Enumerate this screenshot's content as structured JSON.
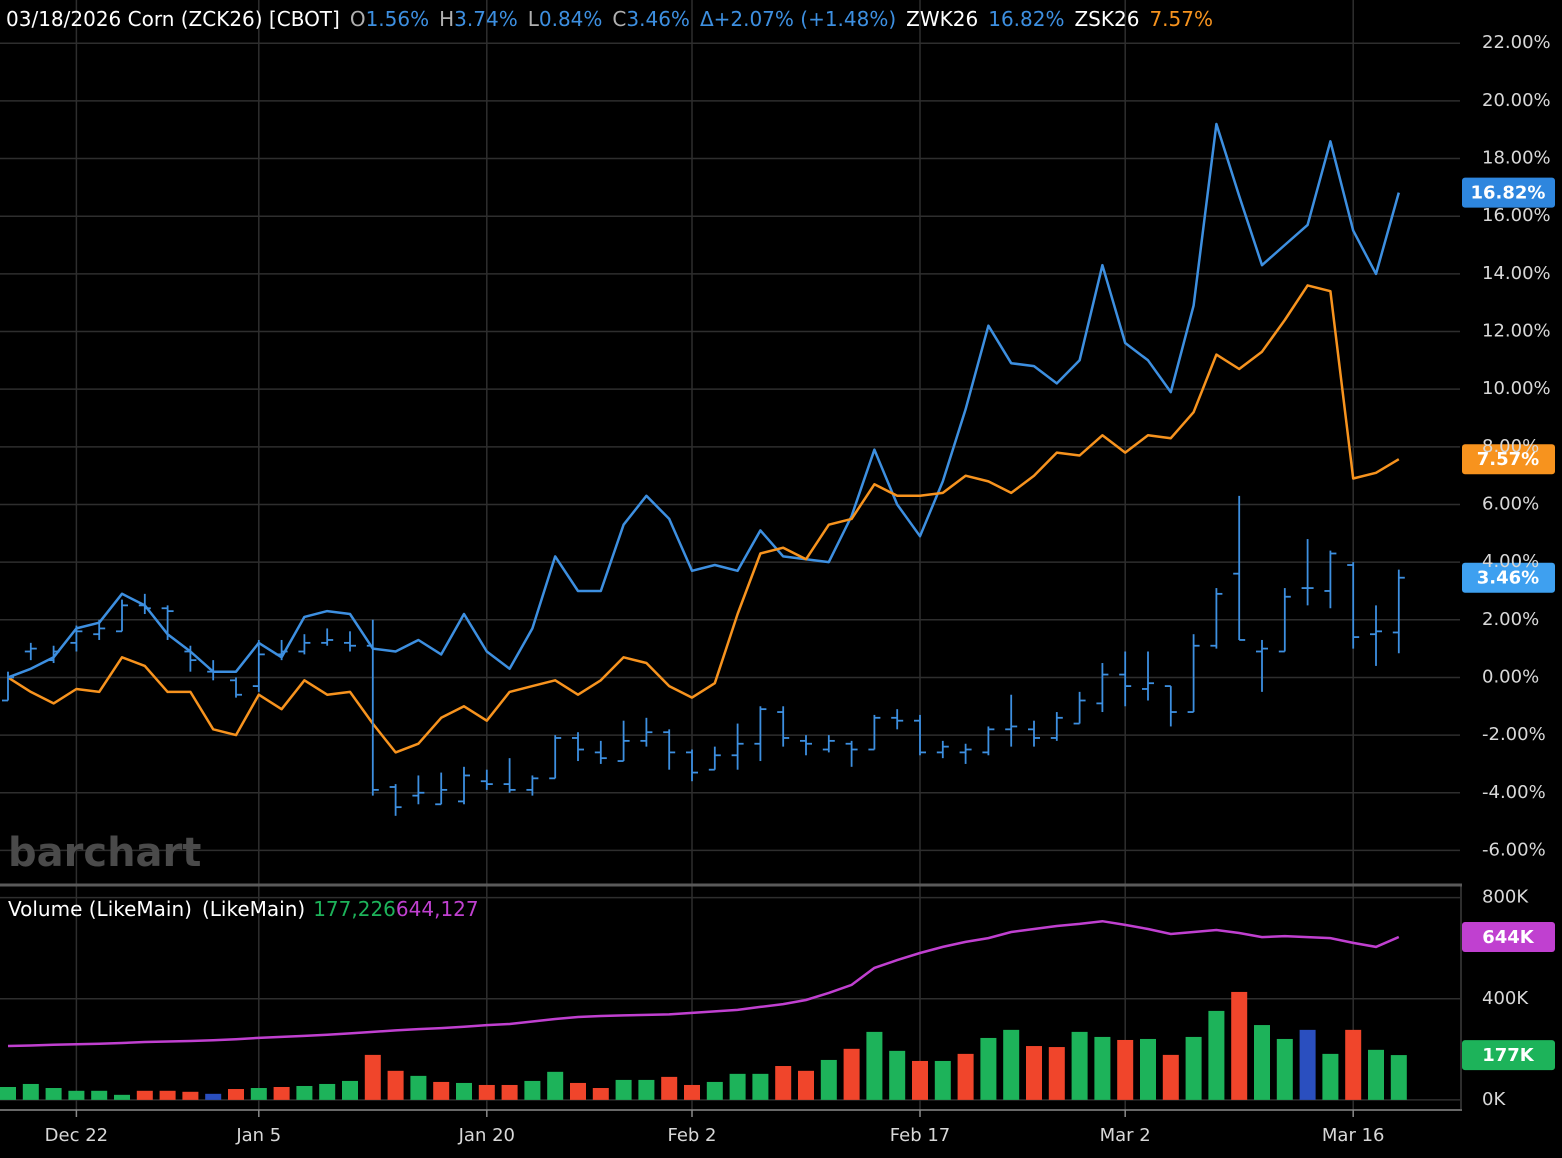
{
  "chart_data": [
    {
      "type": "ohlc",
      "title": "03/18/2026 Corn (ZCK26) [CBOT]",
      "readout": [
        {
          "key": "O",
          "label": "1.56%"
        },
        {
          "key": "H",
          "label": "3.74%"
        },
        {
          "key": "L",
          "label": "0.84%"
        },
        {
          "key": "C",
          "label": "3.46%"
        }
      ],
      "change_label": "Δ+2.07% (+1.48%)",
      "watermark": "barchart",
      "color": "#3d8fe0",
      "categories": [
        null,
        null,
        null,
        "Dec 22",
        null,
        null,
        null,
        null,
        null,
        null,
        null,
        "Jan 5",
        null,
        null,
        null,
        null,
        null,
        null,
        null,
        null,
        null,
        "Jan 20",
        null,
        null,
        null,
        null,
        null,
        null,
        null,
        null,
        "Feb 2",
        null,
        null,
        null,
        null,
        null,
        null,
        null,
        null,
        null,
        "Feb 17",
        null,
        null,
        null,
        null,
        null,
        null,
        null,
        null,
        "Mar 2",
        null,
        null,
        null,
        null,
        null,
        null,
        null,
        null,
        null,
        "Mar 16",
        null,
        null
      ],
      "open": [
        -0.8,
        0.9,
        0.6,
        1.2,
        1.5,
        1.6,
        2.5,
        2.4,
        0.9,
        0.2,
        -0.1,
        -0.3,
        0.8,
        0.9,
        1.2,
        1.2,
        1.1,
        -3.8,
        -4.1,
        -4.4,
        -4.3,
        -3.6,
        -3.7,
        -3.9,
        -3.5,
        -2.1,
        -2.6,
        -2.9,
        -2.2,
        -1.9,
        -2.6,
        -3.2,
        -2.7,
        -2.3,
        -1.2,
        -2.2,
        -2.5,
        -2.3,
        -2.5,
        -1.4,
        -1.5,
        -2.6,
        -2.6,
        -2.6,
        -1.8,
        -1.8,
        -2.1,
        -1.6,
        -0.9,
        0.1,
        -0.4,
        -0.3,
        -1.2,
        1.1,
        3.6,
        0.9,
        0.9,
        3.1,
        3.0,
        3.9,
        1.5,
        1.56
      ],
      "high": [
        0.2,
        1.2,
        1.1,
        1.8,
        2.0,
        2.7,
        2.9,
        2.5,
        1.1,
        0.6,
        0,
        1.3,
        1.3,
        1.5,
        1.7,
        1.6,
        2.0,
        -3.7,
        -3.4,
        -3.3,
        -3.1,
        -3.2,
        -2.8,
        -3.4,
        -2.0,
        -1.9,
        -2.2,
        -1.5,
        -1.4,
        -1.8,
        -2.5,
        -2.4,
        -1.6,
        -1.0,
        -1.0,
        -2.0,
        -2.0,
        -2.2,
        -1.3,
        -1.1,
        -1.3,
        -2.2,
        -2.3,
        -1.7,
        -0.6,
        -1.5,
        -1.2,
        -0.5,
        0.5,
        0.9,
        0.9,
        -0.3,
        1.5,
        3.1,
        6.3,
        1.3,
        3.1,
        4.8,
        4.4,
        4.0,
        2.5,
        3.74
      ],
      "low": [
        -0.8,
        0.6,
        0.5,
        0.9,
        1.3,
        1.6,
        2.2,
        1.3,
        0.2,
        -0.1,
        -0.7,
        -0.5,
        0.6,
        0.8,
        1.1,
        0.9,
        -4.1,
        -4.8,
        -4.4,
        -4.4,
        -4.4,
        -3.9,
        -4.0,
        -4.1,
        -3.5,
        -2.9,
        -3.0,
        -2.9,
        -2.4,
        -3.2,
        -3.6,
        -3.2,
        -3.2,
        -2.9,
        -2.4,
        -2.7,
        -2.6,
        -3.1,
        -2.5,
        -1.8,
        -2.7,
        -2.8,
        -3.0,
        -2.7,
        -2.4,
        -2.4,
        -2.2,
        -1.6,
        -1.2,
        -1.0,
        -0.8,
        -1.7,
        -1.2,
        1.0,
        1.3,
        -0.5,
        0.9,
        2.5,
        2.4,
        1.0,
        0.4,
        0.84
      ],
      "close": [
        0,
        1.0,
        0.9,
        1.6,
        1.7,
        2.5,
        2.4,
        2.3,
        0.6,
        0.2,
        -0.6,
        0.8,
        0.9,
        1.2,
        1.3,
        1.1,
        -3.9,
        -4.5,
        -4.0,
        -3.9,
        -3.4,
        -3.7,
        -3.9,
        -3.5,
        -2.1,
        -2.5,
        -2.8,
        -2.2,
        -1.9,
        -2.6,
        -3.3,
        -2.7,
        -2.3,
        -1.1,
        -2.1,
        -2.3,
        -2.2,
        -2.5,
        -1.4,
        -1.5,
        -2.6,
        -2.4,
        -2.5,
        -1.8,
        -1.7,
        -2.1,
        -1.4,
        -0.8,
        0.1,
        -0.3,
        -0.2,
        -1.2,
        1.1,
        2.9,
        1.3,
        1.0,
        2.8,
        3.1,
        4.3,
        1.4,
        1.6,
        3.46
      ],
      "series": [
        {
          "name": "ZWK26",
          "color": "#3d8fe0",
          "badge_color": "#2e86de",
          "value_label": "16.82%",
          "values": [
            0,
            0.3,
            0.7,
            1.7,
            1.9,
            2.9,
            2.5,
            1.5,
            0.9,
            0.2,
            0.2,
            1.2,
            0.7,
            2.1,
            2.3,
            2.2,
            1.0,
            0.9,
            1.3,
            0.8,
            2.2,
            0.9,
            0.3,
            1.7,
            4.2,
            3.0,
            3.0,
            5.3,
            6.3,
            5.5,
            3.7,
            3.9,
            3.7,
            5.1,
            4.2,
            4.1,
            4.0,
            5.6,
            7.9,
            6.0,
            4.9,
            6.8,
            9.3,
            12.2,
            10.9,
            10.8,
            10.2,
            11.0,
            14.3,
            11.6,
            11.0,
            9.9,
            12.9,
            19.2,
            16.7,
            14.3,
            15.0,
            15.7,
            18.6,
            15.5,
            14.0,
            16.82
          ]
        },
        {
          "name": "ZSK26",
          "color": "#f7931e",
          "badge_color": "#f7931e",
          "value_label": "7.57%",
          "values": [
            0,
            -0.5,
            -0.9,
            -0.4,
            -0.5,
            0.7,
            0.4,
            -0.5,
            -0.5,
            -1.8,
            -2.0,
            -0.6,
            -1.1,
            -0.1,
            -0.6,
            -0.5,
            -1.6,
            -2.6,
            -2.3,
            -1.4,
            -1.0,
            -1.5,
            -0.5,
            -0.3,
            -0.1,
            -0.6,
            -0.1,
            0.7,
            0.5,
            -0.3,
            -0.7,
            -0.2,
            2.2,
            4.3,
            4.5,
            4.1,
            5.3,
            5.5,
            6.7,
            6.3,
            6.3,
            6.4,
            7.0,
            6.8,
            6.4,
            7.0,
            7.8,
            7.7,
            8.4,
            7.8,
            8.4,
            8.3,
            9.2,
            11.2,
            10.7,
            11.3,
            12.4,
            13.6,
            13.4,
            6.9,
            7.1,
            7.57
          ]
        }
      ],
      "close_badge_color": "#3ea0f0",
      "ylim": [
        -7.2,
        23.5
      ],
      "yticks": [
        {
          "value": -6,
          "label": "-6.00%"
        },
        {
          "value": -4,
          "label": "-4.00%"
        },
        {
          "value": -2,
          "label": "-2.00%"
        },
        {
          "value": 0,
          "label": "0.00%"
        },
        {
          "value": 2,
          "label": "2.00%"
        },
        {
          "value": 4,
          "label": "4.00%"
        },
        {
          "value": 6,
          "label": "6.00%"
        },
        {
          "value": 8,
          "label": "8.00%"
        },
        {
          "value": 10,
          "label": "10.00%"
        },
        {
          "value": 12,
          "label": "12.00%"
        },
        {
          "value": 14,
          "label": "14.00%"
        },
        {
          "value": 16,
          "label": "16.00%"
        },
        {
          "value": 18,
          "label": "18.00%"
        },
        {
          "value": 20,
          "label": "20.00%"
        },
        {
          "value": 22,
          "label": "22.00%"
        }
      ],
      "grid": true
    },
    {
      "type": "bar",
      "series": [
        {
          "name": "Volume (LikeMain)",
          "value_label": "177,226",
          "badge_label": "177K",
          "color": "#1db35a",
          "values": [
            51000,
            63000,
            47000,
            36000,
            36000,
            20000,
            36000,
            36000,
            32000,
            24000,
            43000,
            47000,
            51000,
            55000,
            63000,
            75000,
            178000,
            115000,
            95000,
            71000,
            67000,
            59000,
            59000,
            75000,
            111000,
            67000,
            47000,
            79000,
            79000,
            91000,
            59000,
            71000,
            103000,
            103000,
            134000,
            115000,
            158000,
            202000,
            269000,
            194000,
            154000,
            154000,
            182000,
            245000,
            277000,
            213000,
            209000,
            269000,
            249000,
            237000,
            241000,
            178000,
            249000,
            352000,
            427000,
            296000,
            241000,
            277000,
            182000,
            277000,
            198000,
            177226
          ],
          "colors": [
            "#1db35a",
            "#1db35a",
            "#1db35a",
            "#1db35a",
            "#1db35a",
            "#1db35a",
            "#f0452b",
            "#f0452b",
            "#f0452b",
            "#2a4fbf",
            "#f0452b",
            "#1db35a",
            "#f0452b",
            "#1db35a",
            "#1db35a",
            "#1db35a",
            "#f0452b",
            "#f0452b",
            "#1db35a",
            "#f0452b",
            "#1db35a",
            "#f0452b",
            "#f0452b",
            "#1db35a",
            "#1db35a",
            "#f0452b",
            "#f0452b",
            "#1db35a",
            "#1db35a",
            "#f0452b",
            "#f0452b",
            "#1db35a",
            "#1db35a",
            "#1db35a",
            "#f0452b",
            "#f0452b",
            "#1db35a",
            "#f0452b",
            "#1db35a",
            "#1db35a",
            "#f0452b",
            "#1db35a",
            "#f0452b",
            "#1db35a",
            "#1db35a",
            "#f0452b",
            "#f0452b",
            "#1db35a",
            "#1db35a",
            "#f0452b",
            "#1db35a",
            "#f0452b",
            "#1db35a",
            "#1db35a",
            "#f0452b",
            "#1db35a",
            "#1db35a",
            "#2a4fbf",
            "#1db35a",
            "#f0452b",
            "#1db35a",
            "#1db35a"
          ]
        },
        {
          "name": "(LikeMain)",
          "type": "line",
          "value_label": "644,127",
          "badge_label": "644K",
          "color": "#c040d0",
          "values": [
            213000,
            215000,
            218000,
            220000,
            222000,
            225000,
            229000,
            231000,
            233000,
            236000,
            240000,
            245000,
            249000,
            253000,
            258000,
            263000,
            269000,
            275000,
            280000,
            284000,
            289000,
            296000,
            300000,
            310000,
            320000,
            328000,
            332000,
            334000,
            336000,
            338000,
            344000,
            350000,
            356000,
            368000,
            379000,
            395000,
            423000,
            455000,
            522000,
            553000,
            581000,
            605000,
            625000,
            640000,
            664000,
            676000,
            688000,
            696000,
            707000,
            692000,
            676000,
            656000,
            664000,
            672000,
            660000,
            644000,
            648000,
            644000,
            640000,
            621000,
            605000,
            644127
          ]
        }
      ],
      "ylim": [
        -40000,
        850000
      ],
      "yticks": [
        {
          "value": 0,
          "label": "0K"
        },
        {
          "value": 400000,
          "label": "400K"
        },
        {
          "value": 800000,
          "label": "800K"
        }
      ],
      "grid": true
    }
  ]
}
